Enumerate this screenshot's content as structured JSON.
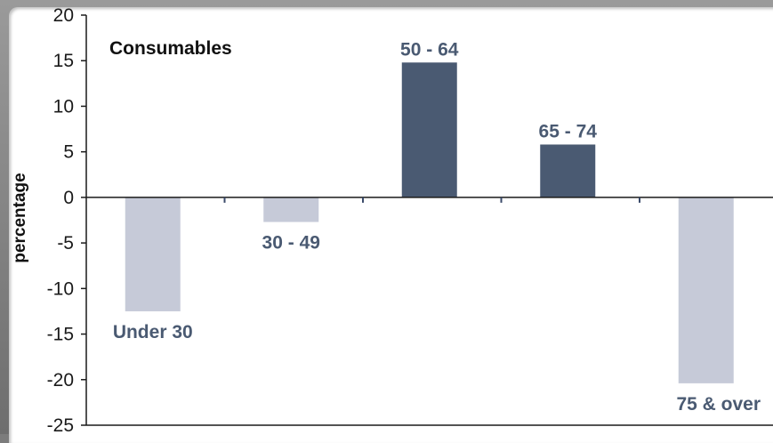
{
  "chart_data": {
    "type": "bar",
    "title": "Consumables",
    "ylabel": "percentage",
    "xlabel": "",
    "categories": [
      "Under 30",
      "30 - 49",
      "50 - 64",
      "65 - 74",
      "75 & over"
    ],
    "values": [
      -12.5,
      -2.7,
      14.8,
      5.8,
      -20.4
    ],
    "ylim": [
      -25,
      20
    ],
    "yticks": [
      "20",
      "15",
      "10",
      "5",
      "0",
      "-5",
      "-10",
      "-15",
      "-20",
      "-25"
    ],
    "grid": false,
    "legend": "none",
    "colors": {
      "positive_bar": "#4a5a72",
      "negative_bar": "#c6cad8",
      "label": "#4a5a72",
      "axis": "#1a1a1a"
    }
  }
}
